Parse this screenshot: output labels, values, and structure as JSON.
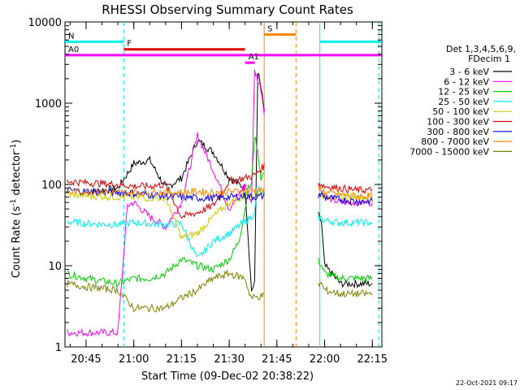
{
  "chart_data": {
    "type": "line",
    "title": "RHESSI Observing Summary Count Rates",
    "xlabel": "Start Time (09-Dec-02 20:38:22)",
    "ylabel_main": "Count Rate (s",
    "ylabel_sup1": "-1",
    "ylabel_mid": " detector",
    "ylabel_sup2": "-1",
    "ylabel_end": ")",
    "yscale": "log",
    "ylim": [
      1,
      10000
    ],
    "xlim": [
      "20:38:22",
      "22:18:00"
    ],
    "x_ticks": [
      "20:45",
      "21:00",
      "21:15",
      "21:30",
      "21:45",
      "22:00",
      "22:15"
    ],
    "y_ticks": [
      "1",
      "10",
      "100",
      "1000",
      "10000"
    ],
    "legend_header": [
      "Det 1,3,4,5,6,9,",
      "FDecim 1"
    ],
    "legend_position": "right",
    "series": [
      {
        "name": "3 - 6 keV",
        "color": "#000000",
        "x": [
          "20:45",
          "20:55",
          "21:00",
          "21:05",
          "21:10",
          "21:15",
          "21:20",
          "21:25",
          "21:30",
          "21:35",
          "21:37",
          "21:38",
          "21:39",
          "21:40",
          "21:41",
          "21:59",
          "22:00",
          "22:05",
          "22:10",
          "22:15"
        ],
        "values": [
          80,
          90,
          180,
          200,
          90,
          120,
          350,
          250,
          120,
          90,
          5,
          6,
          2500,
          1500,
          800,
          35,
          10,
          6,
          6,
          6
        ]
      },
      {
        "name": "6 - 12 keV",
        "color": "#ff00ff",
        "x": [
          "20:39",
          "20:45",
          "20:55",
          "20:58",
          "21:00",
          "21:05",
          "21:10",
          "21:15",
          "21:20",
          "21:25",
          "21:30",
          "21:35",
          "21:37",
          "21:38",
          "21:40",
          "21:41",
          "21:59",
          "22:00",
          "22:05",
          "22:10",
          "22:15"
        ],
        "values": [
          1.5,
          1.5,
          1.5,
          55,
          60,
          40,
          30,
          60,
          400,
          150,
          50,
          100,
          60,
          2500,
          1500,
          800,
          90,
          70,
          60,
          60,
          60
        ]
      },
      {
        "name": "12 - 25 keV",
        "color": "#00cc00",
        "x": [
          "20:39",
          "20:45",
          "20:55",
          "21:00",
          "21:05",
          "21:10",
          "21:15",
          "21:20",
          "21:25",
          "21:30",
          "21:33",
          "21:35",
          "21:36",
          "21:37",
          "21:38",
          "21:39",
          "21:40",
          "21:41",
          "21:59",
          "22:00",
          "22:05",
          "22:10",
          "22:15"
        ],
        "values": [
          8,
          7,
          6,
          7,
          7,
          8,
          12,
          10,
          9,
          12,
          20,
          50,
          90,
          100,
          400,
          250,
          120,
          140,
          10,
          8,
          7,
          7,
          7
        ]
      },
      {
        "name": "25 - 50 keV",
        "color": "#00eeee",
        "x": [
          "20:39",
          "20:45",
          "20:55",
          "21:00",
          "21:05",
          "21:10",
          "21:15",
          "21:20",
          "21:25",
          "21:30",
          "21:35",
          "21:37",
          "21:38",
          "21:39",
          "21:40",
          "21:41",
          "21:59",
          "22:00",
          "22:05",
          "22:10",
          "22:15"
        ],
        "values": [
          35,
          33,
          32,
          34,
          33,
          32,
          33,
          12,
          20,
          25,
          35,
          40,
          45,
          90,
          80,
          70,
          38,
          36,
          34,
          34,
          34
        ]
      },
      {
        "name": "50 - 100 keV",
        "color": "#cccc00",
        "x": [
          "20:39",
          "20:45",
          "20:55",
          "21:00",
          "21:05",
          "21:10",
          "21:15",
          "21:20",
          "21:25",
          "21:30",
          "21:35",
          "21:38",
          "21:41",
          "21:59",
          "22:00",
          "22:05",
          "22:10",
          "22:15"
        ],
        "values": [
          75,
          72,
          70,
          70,
          68,
          68,
          22,
          25,
          40,
          60,
          70,
          75,
          80,
          75,
          72,
          70,
          70,
          70
        ]
      },
      {
        "name": "100 - 300 keV",
        "color": "#dd0000",
        "x": [
          "20:39",
          "20:45",
          "20:55",
          "21:00",
          "21:05",
          "21:10",
          "21:15",
          "21:20",
          "21:25",
          "21:30",
          "21:35",
          "21:38",
          "21:41",
          "21:59",
          "22:00",
          "22:05",
          "22:10",
          "22:15"
        ],
        "values": [
          110,
          105,
          100,
          95,
          95,
          100,
          40,
          45,
          55,
          110,
          120,
          130,
          170,
          100,
          95,
          90,
          85,
          85
        ]
      },
      {
        "name": "300 - 800 keV",
        "color": "#0000ee",
        "x": [
          "20:39",
          "20:45",
          "20:55",
          "21:00",
          "21:05",
          "21:10",
          "21:15",
          "21:20",
          "21:25",
          "21:30",
          "21:35",
          "21:38",
          "21:41",
          "21:59",
          "22:00",
          "22:05",
          "22:10",
          "22:15"
        ],
        "values": [
          85,
          82,
          80,
          78,
          75,
          72,
          70,
          68,
          68,
          70,
          72,
          70,
          72,
          75,
          70,
          65,
          62,
          62
        ]
      },
      {
        "name": "800 - 7000 keV",
        "color": "#ff8800",
        "x": [
          "20:39",
          "20:45",
          "20:55",
          "21:00",
          "21:05",
          "21:10",
          "21:15",
          "21:20",
          "21:25",
          "21:30",
          "21:35",
          "21:38",
          "21:41",
          "21:59",
          "22:00",
          "22:05",
          "22:10",
          "22:15"
        ],
        "values": [
          80,
          82,
          80,
          80,
          80,
          80,
          80,
          82,
          80,
          82,
          82,
          85,
          85,
          88,
          80,
          75,
          72,
          72
        ]
      },
      {
        "name": "7000 - 15000 keV",
        "color": "#808000",
        "x": [
          "20:39",
          "20:45",
          "20:55",
          "21:00",
          "21:05",
          "21:10",
          "21:15",
          "21:20",
          "21:25",
          "21:30",
          "21:35",
          "21:36",
          "21:37",
          "21:59",
          "22:00",
          "22:05",
          "22:10",
          "22:15"
        ],
        "values": [
          6,
          5.5,
          5,
          3,
          3,
          3,
          4,
          5,
          7,
          8,
          7,
          5,
          4,
          6,
          5,
          4.5,
          4.5,
          4.5
        ]
      }
    ],
    "flags": [
      {
        "label": "N",
        "color": "#00eeee",
        "y": 5700,
        "segments": [
          [
            "20:38:22",
            "20:56:50"
          ],
          [
            "21:58:30",
            "22:18:00"
          ]
        ]
      },
      {
        "label": "F",
        "color": "#dd0000",
        "y": 4600,
        "segments": [
          [
            "20:56:50",
            "21:35:00"
          ]
        ]
      },
      {
        "label": "A0",
        "color": "#ff00ff",
        "y": 3900,
        "segments": [
          [
            "20:38:22",
            "22:18:00"
          ]
        ]
      },
      {
        "label": "A1",
        "color": "#ff00ff",
        "y": 3150,
        "segments": [
          [
            "21:35:00",
            "21:38:00"
          ]
        ]
      },
      {
        "label": "S",
        "color": "#ff8800",
        "y": 7000,
        "segments": [
          [
            "21:41:00",
            "21:51:00"
          ]
        ]
      }
    ],
    "vlines": [
      {
        "x": "20:56:50",
        "color": "#00eeee",
        "style": "dashed"
      },
      {
        "x": "21:41:00",
        "color": "#ff8800",
        "style": "solid"
      },
      {
        "x": "21:51:00",
        "color": "#ff8800",
        "style": "dashed"
      },
      {
        "x": "21:58:30",
        "color": "#00eeee",
        "style": "solid"
      },
      {
        "x": "22:17:00",
        "color": "#00eeee",
        "style": "dashed"
      }
    ],
    "gaps": [
      [
        "21:41:00",
        "21:58:00"
      ]
    ]
  },
  "footer": {
    "date_stamp": "22-Oct-2021 09:17"
  }
}
